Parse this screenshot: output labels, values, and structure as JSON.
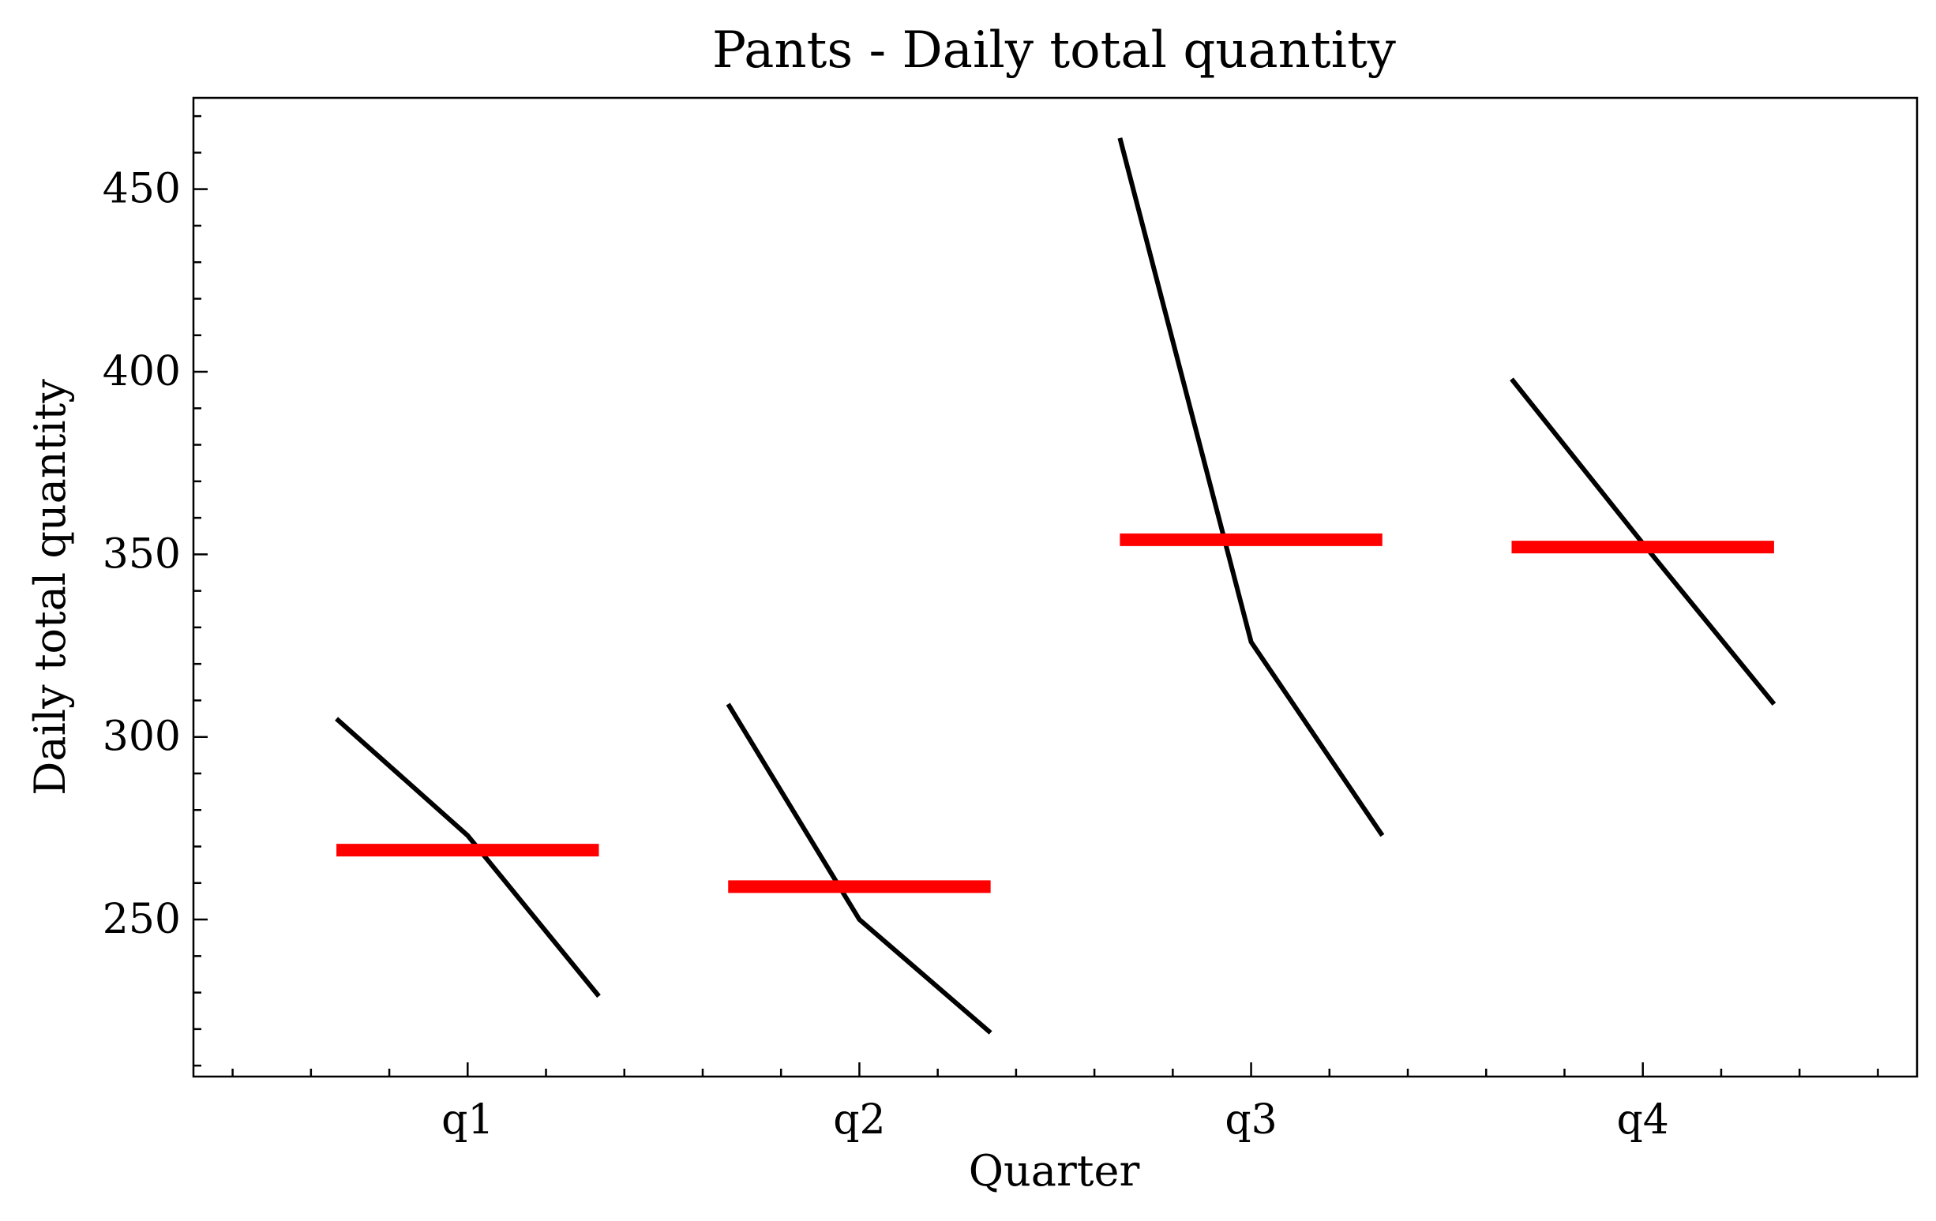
{
  "chart_data": {
    "type": "line",
    "title": "Pants - Daily total quantity",
    "xlabel": "Quarter",
    "ylabel": "Daily total quantity",
    "categories": [
      "q1",
      "q2",
      "q3",
      "q4"
    ],
    "groups": [
      {
        "category": "q1",
        "values": [
          305,
          273,
          229
        ],
        "mean": 269
      },
      {
        "category": "q2",
        "values": [
          309,
          250,
          219
        ],
        "mean": 259
      },
      {
        "category": "q3",
        "values": [
          464,
          326,
          273
        ],
        "mean": 354
      },
      {
        "category": "q4",
        "values": [
          398,
          353,
          309
        ],
        "mean": 352
      }
    ],
    "ylim": [
      207,
      475
    ],
    "xlim": [
      0.3,
      4.7
    ],
    "yticks": [
      250,
      300,
      350,
      400,
      450
    ],
    "ytick_labels": [
      "250",
      "300",
      "350",
      "400",
      "450"
    ],
    "grid": false,
    "colors": {
      "values": "#000000",
      "mean": "#ff0000"
    }
  }
}
